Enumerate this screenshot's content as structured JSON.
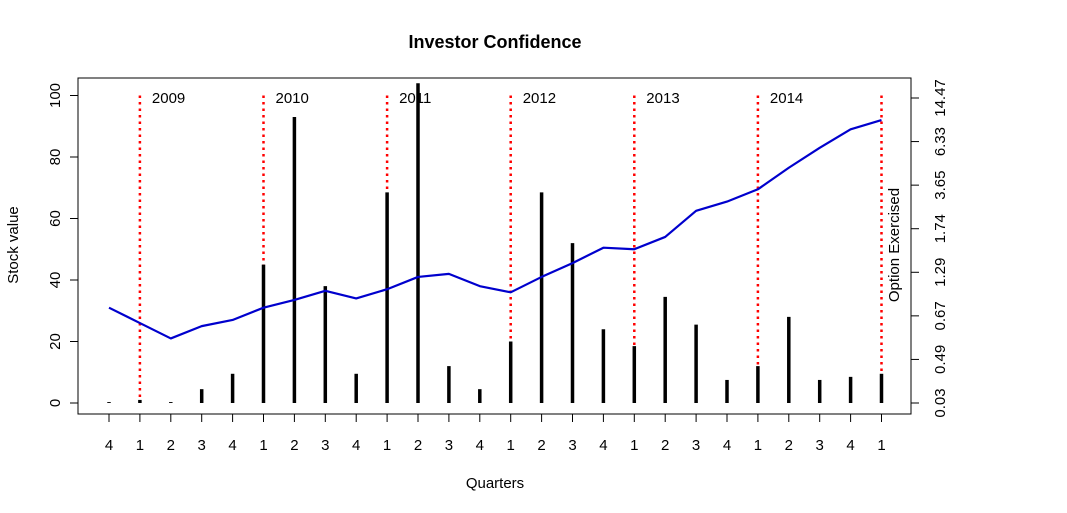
{
  "chart_data": {
    "type": "bar",
    "title": "Investor Confidence",
    "xlabel": "Quarters",
    "ylabel": "Stock value",
    "y2label": "Option Exercised",
    "ylim": [
      0,
      100
    ],
    "yticks": [
      0,
      20,
      40,
      60,
      80,
      100
    ],
    "y2ticks": [
      "0.03",
      "0.49",
      "0.67",
      "1.29",
      "1.74",
      "3.65",
      "6.33",
      "14.47"
    ],
    "categories": [
      "4",
      "1",
      "2",
      "3",
      "4",
      "1",
      "2",
      "3",
      "4",
      "1",
      "2",
      "3",
      "4",
      "1",
      "2",
      "3",
      "4",
      "1",
      "2",
      "3",
      "4",
      "1",
      "2",
      "3",
      "4",
      "1"
    ],
    "series": [
      {
        "type": "bar",
        "values": [
          0.3,
          1,
          0.3,
          4.5,
          9.5,
          45,
          93,
          38,
          9.5,
          68.5,
          104,
          12,
          4.5,
          20,
          68.5,
          52,
          24,
          18.5,
          34.5,
          25.5,
          7.5,
          12,
          28,
          7.5,
          8.5,
          9.5
        ],
        "color": "#000000"
      },
      {
        "type": "line",
        "values": [
          31,
          26,
          21,
          25,
          27,
          31,
          33.5,
          36.5,
          34,
          37,
          41,
          42,
          38,
          36,
          41,
          45.5,
          50.5,
          50,
          54,
          62.5,
          65.5,
          69.5,
          76.5,
          83,
          89,
          92
        ],
        "color": "#0000cd"
      }
    ],
    "markers": {
      "color": "#ff0000",
      "positions": [
        2,
        6,
        10,
        14,
        18,
        22,
        26
      ],
      "labels": [
        "2009",
        "2010",
        "2011",
        "2012",
        "2013",
        "2014",
        ""
      ]
    },
    "grid": false,
    "legend": "none"
  }
}
